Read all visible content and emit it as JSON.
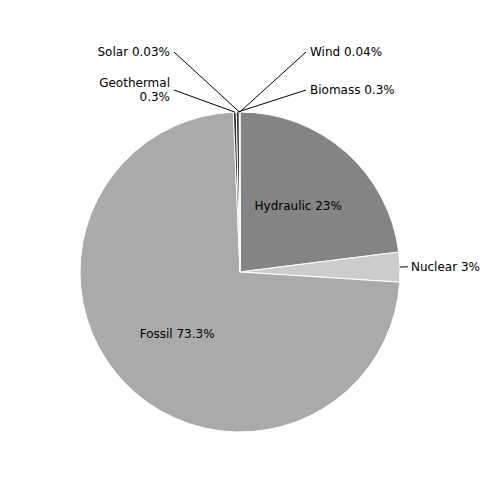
{
  "chart_data": {
    "type": "pie",
    "categories": [
      "Hydraulic 23%",
      "Nuclear 3%",
      "Fossil 73.3%",
      "Geothermal\n0.3%",
      "Biomass 0.3%",
      "Solar 0.03%",
      "Wind 0.04%"
    ],
    "values": [
      23.0,
      3.0,
      73.3,
      0.3,
      0.3,
      0.03,
      0.04
    ],
    "colors": [
      "#848484",
      "#cccccc",
      "#aaaaaa",
      "#333333",
      "#333333",
      "#333333",
      "#333333"
    ]
  }
}
